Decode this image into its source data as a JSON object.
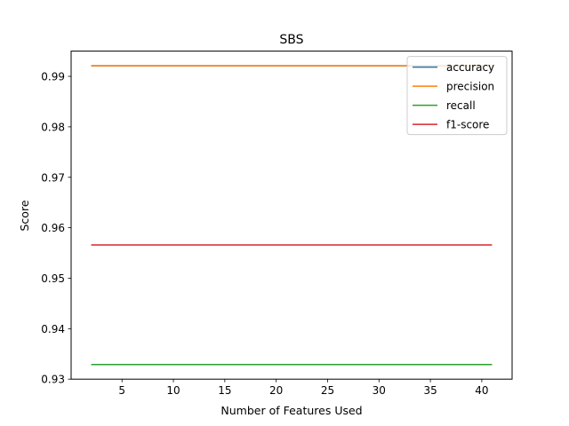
{
  "chart_data": {
    "type": "line",
    "title": "SBS",
    "xlabel": "Number of Features Used",
    "ylabel": "Score",
    "xlim": [
      0.05,
      42.95
    ],
    "ylim": [
      0.93,
      0.995
    ],
    "xticks": [
      5,
      10,
      15,
      20,
      25,
      30,
      35,
      40
    ],
    "yticks": [
      0.93,
      0.94,
      0.95,
      0.96,
      0.97,
      0.98,
      0.99
    ],
    "x": [
      2,
      41
    ],
    "grid": false,
    "legend_position": "top-right",
    "series": [
      {
        "name": "accuracy",
        "color": "#1f77b4",
        "values": [
          0.9921,
          0.9921
        ]
      },
      {
        "name": "precision",
        "color": "#ff7f0e",
        "values": [
          0.9921,
          0.9921
        ]
      },
      {
        "name": "recall",
        "color": "#2ca02c",
        "values": [
          0.9329,
          0.9329
        ]
      },
      {
        "name": "f1-score",
        "color": "#d62728",
        "values": [
          0.9566,
          0.9566
        ]
      }
    ]
  }
}
